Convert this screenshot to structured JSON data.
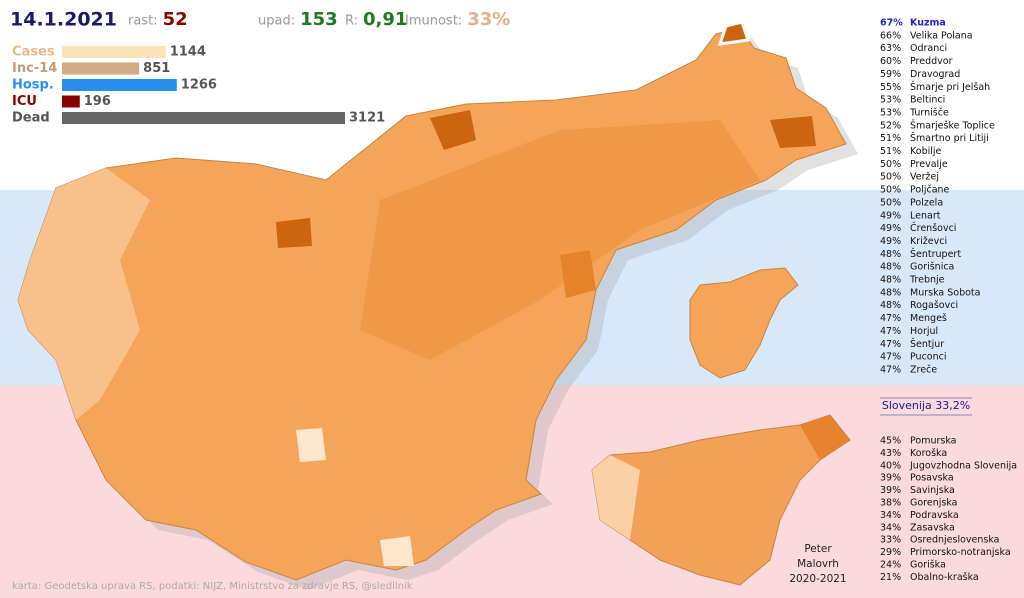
{
  "header": {
    "date": "14.1.2021",
    "stats": [
      {
        "label": "rast:",
        "value": 52,
        "color": "#8b0000"
      },
      {
        "label": "upad:",
        "value": 153,
        "color": "#1e7a1e"
      },
      {
        "label": "R:",
        "value": "0,91",
        "color": "#1e7a1e"
      },
      {
        "label": "Imunost:",
        "value": "33%",
        "color": "#e0b090"
      }
    ]
  },
  "bars": [
    {
      "label": "Cases",
      "value": 1144,
      "color": "#fde3b8",
      "label_color": "#e8b98a"
    },
    {
      "label": "Inc-14",
      "value": 851,
      "color": "#d2aa85",
      "label_color": "#c79a76"
    },
    {
      "label": "Hosp.",
      "value": 1266,
      "color": "#2a8ef0",
      "label_color": "#2a8ef0"
    },
    {
      "label": "ICU",
      "value": 196,
      "color": "#8b0000",
      "label_color": "#8b0000"
    },
    {
      "label": "Dead",
      "value": 3121,
      "color": "#666666",
      "label_color": "#555555"
    }
  ],
  "municipalities": [
    {
      "pct": "67%",
      "name": "Kuzma"
    },
    {
      "pct": "66%",
      "name": "Velika Polana"
    },
    {
      "pct": "63%",
      "name": "Odranci"
    },
    {
      "pct": "60%",
      "name": "Preddvor"
    },
    {
      "pct": "59%",
      "name": "Dravograd"
    },
    {
      "pct": "55%",
      "name": "Šmarje pri Jelšah"
    },
    {
      "pct": "53%",
      "name": "Beltinci"
    },
    {
      "pct": "53%",
      "name": "Turnišče"
    },
    {
      "pct": "52%",
      "name": "Šmarješke Toplice"
    },
    {
      "pct": "51%",
      "name": "Šmartno pri Litiji"
    },
    {
      "pct": "51%",
      "name": "Kobilje"
    },
    {
      "pct": "50%",
      "name": "Prevalje"
    },
    {
      "pct": "50%",
      "name": "Veržej"
    },
    {
      "pct": "50%",
      "name": "Poljčane"
    },
    {
      "pct": "50%",
      "name": "Polzela"
    },
    {
      "pct": "49%",
      "name": "Lenart"
    },
    {
      "pct": "49%",
      "name": "Črenšovci"
    },
    {
      "pct": "49%",
      "name": "Križevci"
    },
    {
      "pct": "48%",
      "name": "Šentrupert"
    },
    {
      "pct": "48%",
      "name": "Gorišnica"
    },
    {
      "pct": "48%",
      "name": "Trebnje"
    },
    {
      "pct": "48%",
      "name": "Murska Sobota"
    },
    {
      "pct": "48%",
      "name": "Rogašovci"
    },
    {
      "pct": "47%",
      "name": "Mengeš"
    },
    {
      "pct": "47%",
      "name": "Horjul"
    },
    {
      "pct": "47%",
      "name": "Šentjur"
    },
    {
      "pct": "47%",
      "name": "Puconci"
    },
    {
      "pct": "47%",
      "name": "Zreče"
    }
  ],
  "country": "Slovenija 33,2%",
  "regions": [
    {
      "pct": "45%",
      "name": "Pomurska"
    },
    {
      "pct": "43%",
      "name": "Koroška"
    },
    {
      "pct": "40%",
      "name": "Jugovzhodna Slovenija"
    },
    {
      "pct": "39%",
      "name": "Posavska"
    },
    {
      "pct": "39%",
      "name": "Savinjska"
    },
    {
      "pct": "38%",
      "name": "Gorenjska"
    },
    {
      "pct": "34%",
      "name": "Podravska"
    },
    {
      "pct": "34%",
      "name": "Zasavska"
    },
    {
      "pct": "33%",
      "name": "Osrednjeslovenska"
    },
    {
      "pct": "29%",
      "name": "Primorsko-notranjska"
    },
    {
      "pct": "24%",
      "name": "Goriška"
    },
    {
      "pct": "21%",
      "name": "Obalno-kraška"
    }
  ],
  "author": [
    "Peter",
    "Malovrh",
    "2020-2021"
  ],
  "credits": "karta: Geodetska uprava RS,  podatki: NIJZ, Ministrstvo za zdravje RS, @sledilnik"
}
